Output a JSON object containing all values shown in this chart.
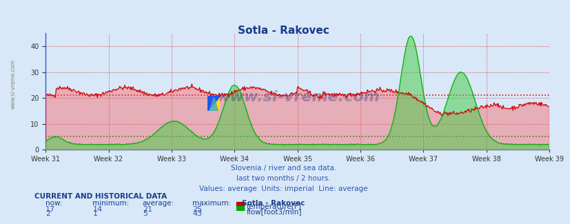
{
  "title": "Sotla - Rakovec",
  "background_color": "#d8e8f8",
  "plot_bg_color": "#d8e8f8",
  "x_labels": [
    "Week 31",
    "Week 32",
    "Week 33",
    "Week 34",
    "Week 35",
    "Week 36",
    "Week 37",
    "Week 38",
    "Week 39"
  ],
  "ylim": [
    0,
    45
  ],
  "yticks": [
    0,
    10,
    20,
    30,
    40
  ],
  "temp_avg": 21,
  "flow_avg": 5,
  "temp_color": "#cc0000",
  "flow_color": "#00aa00",
  "temp_avg_color": "#dd0000",
  "flow_avg_color": "#008800",
  "watermark": "www.si-vreme.com",
  "watermark_color": "#1a3a8a",
  "subtitle1": "Slovenia / river and sea data.",
  "subtitle2": "last two months / 2 hours.",
  "subtitle3": "Values: average  Units: imperial  Line: average",
  "subtitle_color": "#3355aa",
  "table_title": "CURRENT AND HISTORICAL DATA",
  "table_color": "#1a3a8a",
  "now_temp": 17,
  "min_temp": 14,
  "avg_temp": 21,
  "max_temp": 25,
  "now_flow": 2,
  "min_flow": 1,
  "avg_flow": 5,
  "max_flow": 43,
  "n_points": 720
}
